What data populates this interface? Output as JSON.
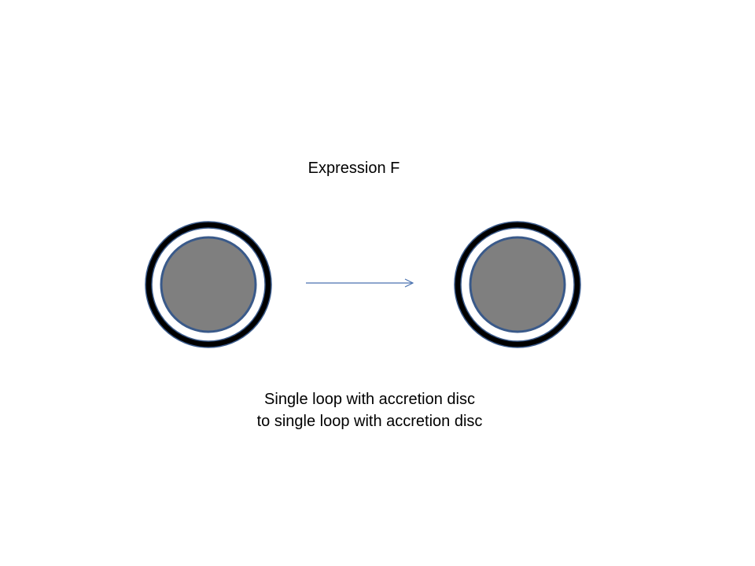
{
  "title": "Expression F",
  "caption": {
    "line1": "Single loop with accretion disc",
    "line2": "to single loop with accretion disc"
  },
  "colors": {
    "background": "#ffffff",
    "outer_ring": "#000000",
    "ring_outline": "#3a5a8a",
    "gap": "#ffffff",
    "core_fill": "#7f7f7f",
    "arrow": "#4a72b0"
  }
}
